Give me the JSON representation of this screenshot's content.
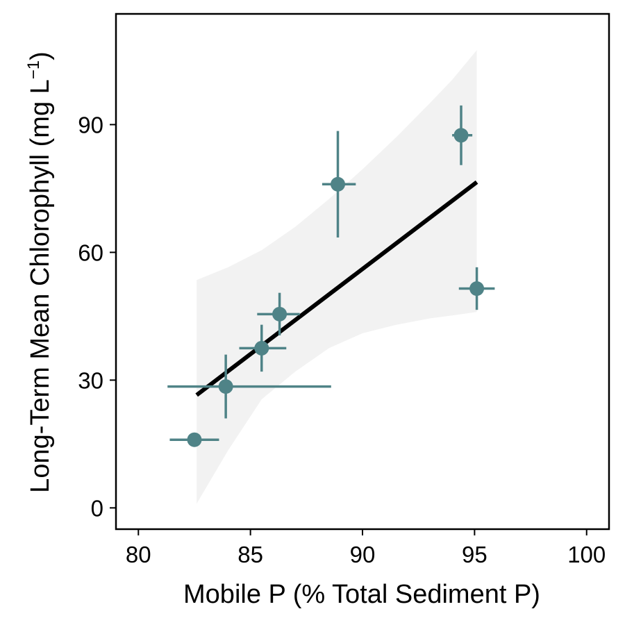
{
  "chart_data": {
    "type": "scatter",
    "xlabel": "Mobile P (% Total Sediment P)",
    "ylabel_main": "Long-Term Mean Chlorophyll (mg L",
    "ylabel_sup": "−1",
    "ylabel_close": ")",
    "xlim": [
      79,
      101
    ],
    "ylim": [
      -5,
      116
    ],
    "x_ticks": [
      80,
      85,
      90,
      95,
      100
    ],
    "y_ticks": [
      0,
      30,
      60,
      90
    ],
    "x_tick_labels": [
      "80",
      "85",
      "90",
      "95",
      "100"
    ],
    "y_tick_labels": [
      "0",
      "30",
      "60",
      "90"
    ],
    "grid": false,
    "colors": {
      "points": "#4f8387",
      "fit": "#000000",
      "band": "#f2f2f2",
      "frame": "#000000"
    },
    "points": [
      {
        "x": 82.5,
        "y": 16,
        "xerr": [
          81.4,
          83.6
        ],
        "yerr": [
          15.2,
          17.5
        ]
      },
      {
        "x": 83.9,
        "y": 28.5,
        "xerr": [
          81.3,
          88.6
        ],
        "yerr": [
          21,
          36
        ]
      },
      {
        "x": 85.5,
        "y": 37.5,
        "xerr": [
          84.5,
          86.6
        ],
        "yerr": [
          32,
          43
        ]
      },
      {
        "x": 86.3,
        "y": 45.5,
        "xerr": [
          85.3,
          87.2
        ],
        "yerr": [
          40.5,
          50.5
        ]
      },
      {
        "x": 88.9,
        "y": 76,
        "xerr": [
          88.2,
          89.7
        ],
        "yerr": [
          63.5,
          88.5
        ]
      },
      {
        "x": 94.4,
        "y": 87.5,
        "xerr": [
          94.0,
          94.9
        ],
        "yerr": [
          80.5,
          94.5
        ]
      },
      {
        "x": 95.1,
        "y": 51.5,
        "xerr": [
          94.3,
          95.9
        ],
        "yerr": [
          46.5,
          56.5
        ]
      }
    ],
    "fit_line": {
      "x": [
        82.6,
        95.1
      ],
      "y": [
        26.5,
        76.5
      ]
    },
    "confidence_band": {
      "x": [
        82.6,
        84.0,
        85.5,
        87.0,
        88.5,
        90.0,
        91.5,
        93.0,
        94.0,
        95.1
      ],
      "upper": [
        53.5,
        56.5,
        60.5,
        66.0,
        72.5,
        79.5,
        87.0,
        95.0,
        100.5,
        107.5
      ],
      "lower": [
        1.0,
        13.5,
        25.5,
        32.0,
        37.5,
        41.0,
        43.0,
        44.5,
        45.2,
        46.0
      ]
    }
  }
}
